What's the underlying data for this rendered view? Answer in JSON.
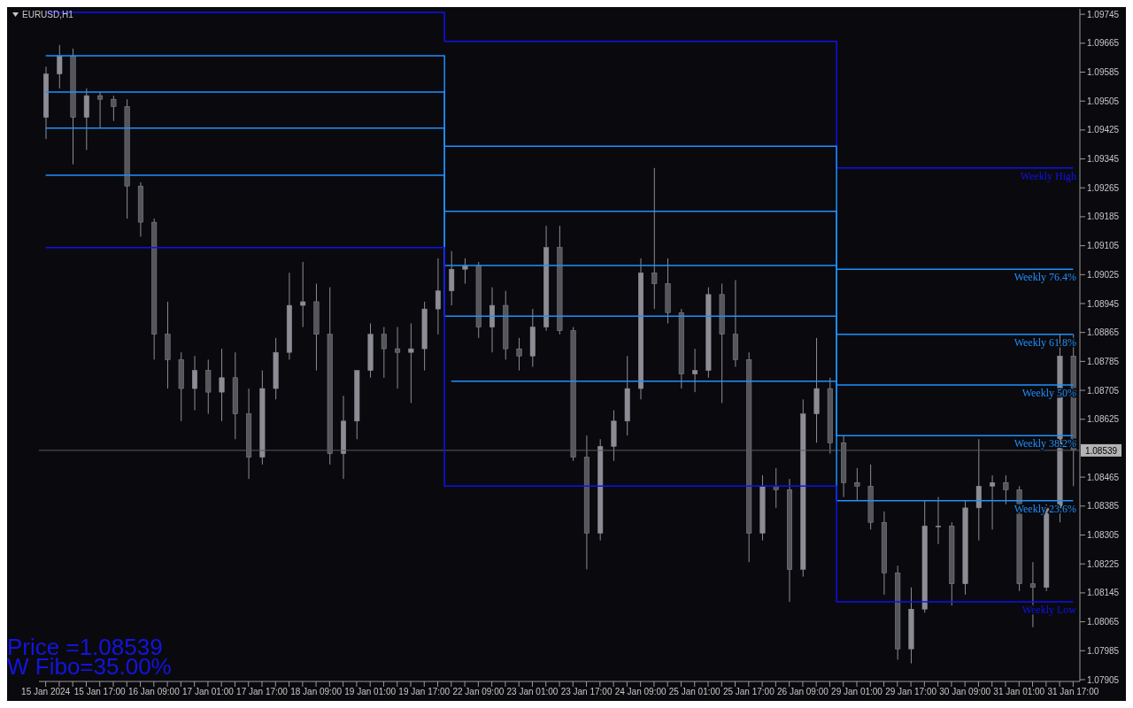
{
  "chart_data": {
    "type": "candlestick",
    "title": "EURUSD,H1",
    "color": "#8c8c94",
    "categories": [
      "15 Jan 2024",
      null,
      null,
      null,
      "15 Jan 17:00",
      null,
      null,
      null,
      "16 Jan 09:00",
      null,
      null,
      null,
      "17 Jan 01:00",
      null,
      null,
      null,
      "17 Jan 17:00",
      null,
      null,
      null,
      "18 Jan 09:00",
      null,
      null,
      null,
      "19 Jan 01:00",
      null,
      null,
      null,
      "19 Jan 17:00",
      null,
      null,
      null,
      "22 Jan 09:00",
      null,
      null,
      null,
      "23 Jan 01:00",
      null,
      null,
      null,
      "23 Jan 17:00",
      null,
      null,
      null,
      "24 Jan 09:00",
      null,
      null,
      null,
      "25 Jan 01:00",
      null,
      null,
      null,
      "25 Jan 17:00",
      null,
      null,
      null,
      "26 Jan 09:00",
      null,
      null,
      null,
      "29 Jan 01:00",
      null,
      null,
      null,
      "29 Jan 17:00",
      null,
      null,
      null,
      "30 Jan 09:00",
      null,
      null,
      null,
      "31 Jan 01:00",
      null,
      null,
      null,
      "31 Jan 17:00"
    ],
    "ohlc": [
      [
        1.0946,
        1.096,
        1.094,
        1.0958
      ],
      [
        1.0958,
        1.0966,
        1.0954,
        1.0963
      ],
      [
        1.0963,
        1.0965,
        1.0933,
        1.0946
      ],
      [
        1.0946,
        1.0954,
        1.0937,
        1.0952
      ],
      [
        1.0952,
        1.0953,
        1.0943,
        1.0951
      ],
      [
        1.0951,
        1.0952,
        1.0945,
        1.0949
      ],
      [
        1.0949,
        1.0951,
        1.0918,
        1.0927
      ],
      [
        1.0927,
        1.0928,
        1.0913,
        1.0917
      ],
      [
        1.0917,
        1.0918,
        1.0879,
        1.0886
      ],
      [
        1.0886,
        1.0895,
        1.0871,
        1.0879
      ],
      [
        1.0879,
        1.0881,
        1.0862,
        1.0871
      ],
      [
        1.0871,
        1.088,
        1.0865,
        1.0876
      ],
      [
        1.0876,
        1.0879,
        1.0864,
        1.087
      ],
      [
        1.087,
        1.0882,
        1.0862,
        1.0874
      ],
      [
        1.0874,
        1.0881,
        1.0857,
        1.0864
      ],
      [
        1.0864,
        1.0871,
        1.0846,
        1.0852
      ],
      [
        1.0852,
        1.0876,
        1.085,
        1.0871
      ],
      [
        1.0871,
        1.0885,
        1.0868,
        1.0881
      ],
      [
        1.0881,
        1.0903,
        1.0879,
        1.0894
      ],
      [
        1.0894,
        1.0906,
        1.0888,
        1.0895
      ],
      [
        1.0895,
        1.09,
        1.0876,
        1.0886
      ],
      [
        1.0886,
        1.0899,
        1.085,
        1.0853
      ],
      [
        1.0853,
        1.0869,
        1.0846,
        1.0862
      ],
      [
        1.0862,
        1.0876,
        1.0857,
        1.0876
      ],
      [
        1.0876,
        1.0889,
        1.0874,
        1.0886
      ],
      [
        1.0886,
        1.0888,
        1.0874,
        1.0882
      ],
      [
        1.0882,
        1.0888,
        1.0871,
        1.0881
      ],
      [
        1.0881,
        1.0889,
        1.0867,
        1.0882
      ],
      [
        1.0882,
        1.0895,
        1.0876,
        1.0893
      ],
      [
        1.0893,
        1.0907,
        1.0886,
        1.0898
      ],
      [
        1.0898,
        1.0909,
        1.0894,
        1.0904
      ],
      [
        1.0904,
        1.0907,
        1.09,
        1.0905
      ],
      [
        1.0905,
        1.0906,
        1.0885,
        1.0888
      ],
      [
        1.0888,
        1.0899,
        1.0881,
        1.0894
      ],
      [
        1.0894,
        1.0898,
        1.0879,
        1.0882
      ],
      [
        1.0882,
        1.0885,
        1.0876,
        1.088
      ],
      [
        1.088,
        1.0893,
        1.0877,
        1.0888
      ],
      [
        1.0888,
        1.0916,
        1.0887,
        1.091
      ],
      [
        1.091,
        1.0916,
        1.0886,
        1.0887
      ],
      [
        1.0887,
        1.0888,
        1.0851,
        1.0852
      ],
      [
        1.0852,
        1.0858,
        1.0821,
        1.0831
      ],
      [
        1.0831,
        1.0857,
        1.0829,
        1.0855
      ],
      [
        1.0855,
        1.0865,
        1.0851,
        1.0862
      ],
      [
        1.0862,
        1.088,
        1.0858,
        1.0871
      ],
      [
        1.0871,
        1.0907,
        1.0868,
        1.0903
      ],
      [
        1.0903,
        1.0932,
        1.0893,
        1.09
      ],
      [
        1.09,
        1.0907,
        1.0889,
        1.0892
      ],
      [
        1.0892,
        1.0893,
        1.0871,
        1.0875
      ],
      [
        1.0875,
        1.0882,
        1.087,
        1.0876
      ],
      [
        1.0876,
        1.0899,
        1.0874,
        1.0897
      ],
      [
        1.0897,
        1.09,
        1.0867,
        1.0886
      ],
      [
        1.0886,
        1.0901,
        1.0877,
        1.0879
      ],
      [
        1.0879,
        1.0881,
        1.0823,
        1.0831
      ],
      [
        1.0831,
        1.0847,
        1.0829,
        1.0844
      ],
      [
        1.0844,
        1.0849,
        1.0838,
        1.0843
      ],
      [
        1.0843,
        1.0846,
        1.0812,
        1.0821
      ],
      [
        1.0821,
        1.0868,
        1.0819,
        1.0864
      ],
      [
        1.0864,
        1.0885,
        1.0856,
        1.0871
      ],
      [
        1.0871,
        1.0874,
        1.0853,
        1.0856
      ],
      [
        1.0856,
        1.0858,
        1.0841,
        1.0845
      ],
      [
        1.0845,
        1.0849,
        1.084,
        1.0844
      ],
      [
        1.0844,
        1.085,
        1.0832,
        1.0834
      ],
      [
        1.0834,
        1.0837,
        1.0814,
        1.082
      ],
      [
        1.082,
        1.0822,
        1.0796,
        1.0799
      ],
      [
        1.0799,
        1.0816,
        1.0795,
        1.081
      ],
      [
        1.081,
        1.084,
        1.0809,
        1.0833
      ],
      [
        1.0833,
        1.0841,
        1.0828,
        1.0833
      ],
      [
        1.0833,
        1.0834,
        1.0811,
        1.0817
      ],
      [
        1.0817,
        1.084,
        1.0814,
        1.0838
      ],
      [
        1.0838,
        1.0857,
        1.0829,
        1.0844
      ],
      [
        1.0844,
        1.0847,
        1.0832,
        1.0845
      ],
      [
        1.0845,
        1.0847,
        1.0839,
        1.0843
      ],
      [
        1.0843,
        1.0844,
        1.0815,
        1.0817
      ],
      [
        1.0817,
        1.0823,
        1.0805,
        1.0816
      ],
      [
        1.0816,
        1.0839,
        1.0815,
        1.0838
      ],
      [
        1.0838,
        1.0886,
        1.0834,
        1.088
      ],
      [
        1.088,
        1.0886,
        1.0844,
        1.0854
      ]
    ],
    "series": [
      {
        "name": "Weekly High",
        "type": "step",
        "color": "#1010f0",
        "values": [
          1.0975,
          1.0975,
          1.0975,
          1.0975,
          1.0975,
          1.0975,
          1.0975,
          1.0975,
          1.0975,
          1.0975,
          1.0975,
          1.0975,
          1.0975,
          1.0975,
          1.0975,
          1.0975,
          1.0975,
          1.0975,
          1.0975,
          1.0975,
          1.0975,
          1.0975,
          1.0975,
          1.0975,
          1.0975,
          1.0975,
          1.0975,
          1.0975,
          1.0975,
          1.0975,
          1.0967,
          1.0967,
          1.0967,
          1.0967,
          1.0967,
          1.0967,
          1.0967,
          1.0967,
          1.0967,
          1.0967,
          1.0967,
          1.0967,
          1.0967,
          1.0967,
          1.0967,
          1.0967,
          1.0967,
          1.0967,
          1.0967,
          1.0967,
          1.0967,
          1.0967,
          1.0967,
          1.0967,
          1.0967,
          1.0967,
          1.0967,
          1.0967,
          1.0967,
          1.0932,
          1.0932,
          1.0932,
          1.0932,
          1.0932,
          1.0932,
          1.0932,
          1.0932,
          1.0932,
          1.0932,
          1.0932,
          1.0932,
          1.0932,
          1.0932,
          1.0932,
          1.0932,
          1.0932,
          1.0932
        ]
      },
      {
        "name": "Weekly 76.4%",
        "type": "step",
        "color": "#1e90ff",
        "values": [
          1.0963,
          1.0963,
          1.0963,
          1.0963,
          1.0963,
          1.0963,
          1.0963,
          1.0963,
          1.0963,
          1.0963,
          1.0963,
          1.0963,
          1.0963,
          1.0963,
          1.0963,
          1.0963,
          1.0963,
          1.0963,
          1.0963,
          1.0963,
          1.0963,
          1.0963,
          1.0963,
          1.0963,
          1.0963,
          1.0963,
          1.0963,
          1.0963,
          1.0963,
          1.0963,
          1.0938,
          1.0938,
          1.0938,
          1.0938,
          1.0938,
          1.0938,
          1.0938,
          1.0938,
          1.0938,
          1.0938,
          1.0938,
          1.0938,
          1.0938,
          1.0938,
          1.0938,
          1.0938,
          1.0938,
          1.0938,
          1.0938,
          1.0938,
          1.0938,
          1.0938,
          1.0938,
          1.0938,
          1.0938,
          1.0938,
          1.0938,
          1.0938,
          1.0938,
          1.0904,
          1.0904,
          1.0904,
          1.0904,
          1.0904,
          1.0904,
          1.0904,
          1.0904,
          1.0904,
          1.0904,
          1.0904,
          1.0904,
          1.0904,
          1.0904,
          1.0904,
          1.0904,
          1.0904,
          1.0904
        ]
      },
      {
        "name": "Weekly 61.8%",
        "type": "step",
        "color": "#1e90ff",
        "values": [
          1.0953,
          1.0953,
          1.0953,
          1.0953,
          1.0953,
          1.0953,
          1.0953,
          1.0953,
          1.0953,
          1.0953,
          1.0953,
          1.0953,
          1.0953,
          1.0953,
          1.0953,
          1.0953,
          1.0953,
          1.0953,
          1.0953,
          1.0953,
          1.0953,
          1.0953,
          1.0953,
          1.0953,
          1.0953,
          1.0953,
          1.0953,
          1.0953,
          1.0953,
          1.0953,
          1.092,
          1.092,
          1.092,
          1.092,
          1.092,
          1.092,
          1.092,
          1.092,
          1.092,
          1.092,
          1.092,
          1.092,
          1.092,
          1.092,
          1.092,
          1.092,
          1.092,
          1.092,
          1.092,
          1.092,
          1.092,
          1.092,
          1.092,
          1.092,
          1.092,
          1.092,
          1.092,
          1.092,
          1.092,
          1.0886,
          1.0886,
          1.0886,
          1.0886,
          1.0886,
          1.0886,
          1.0886,
          1.0886,
          1.0886,
          1.0886,
          1.0886,
          1.0886,
          1.0886,
          1.0886,
          1.0886,
          1.0886,
          1.0886,
          1.0886
        ]
      },
      {
        "name": "Weekly 50%",
        "type": "step",
        "color": "#1e90ff",
        "values": [
          1.0943,
          1.0943,
          1.0943,
          1.0943,
          1.0943,
          1.0943,
          1.0943,
          1.0943,
          1.0943,
          1.0943,
          1.0943,
          1.0943,
          1.0943,
          1.0943,
          1.0943,
          1.0943,
          1.0943,
          1.0943,
          1.0943,
          1.0943,
          1.0943,
          1.0943,
          1.0943,
          1.0943,
          1.0943,
          1.0943,
          1.0943,
          1.0943,
          1.0943,
          1.0943,
          1.0905,
          1.0905,
          1.0905,
          1.0905,
          1.0905,
          1.0905,
          1.0905,
          1.0905,
          1.0905,
          1.0905,
          1.0905,
          1.0905,
          1.0905,
          1.0905,
          1.0905,
          1.0905,
          1.0905,
          1.0905,
          1.0905,
          1.0905,
          1.0905,
          1.0905,
          1.0905,
          1.0905,
          1.0905,
          1.0905,
          1.0905,
          1.0905,
          1.0905,
          1.0872,
          1.0872,
          1.0872,
          1.0872,
          1.0872,
          1.0872,
          1.0872,
          1.0872,
          1.0872,
          1.0872,
          1.0872,
          1.0872,
          1.0872,
          1.0872,
          1.0872,
          1.0872,
          1.0872,
          1.0872
        ]
      },
      {
        "name": "Weekly 38.2%",
        "type": "step",
        "color": "#1e90ff",
        "values": [
          1.093,
          1.093,
          1.093,
          1.093,
          1.093,
          1.093,
          1.093,
          1.093,
          1.093,
          1.093,
          1.093,
          1.093,
          1.093,
          1.093,
          1.093,
          1.093,
          1.093,
          1.093,
          1.093,
          1.093,
          1.093,
          1.093,
          1.093,
          1.093,
          1.093,
          1.093,
          1.093,
          1.093,
          1.093,
          1.093,
          1.0891,
          1.0891,
          1.0891,
          1.0891,
          1.0891,
          1.0891,
          1.0891,
          1.0891,
          1.0891,
          1.0891,
          1.0891,
          1.0891,
          1.0891,
          1.0891,
          1.0891,
          1.0891,
          1.0891,
          1.0891,
          1.0891,
          1.0891,
          1.0891,
          1.0891,
          1.0891,
          1.0891,
          1.0891,
          1.0891,
          1.0891,
          1.0891,
          1.0891,
          1.0858,
          1.0858,
          1.0858,
          1.0858,
          1.0858,
          1.0858,
          1.0858,
          1.0858,
          1.0858,
          1.0858,
          1.0858,
          1.0858,
          1.0858,
          1.0858,
          1.0858,
          1.0858,
          1.0858,
          1.0858
        ]
      },
      {
        "name": "Weekly 23.6%",
        "type": "step",
        "color": "#1e90ff",
        "values": [
          null,
          null,
          null,
          null,
          null,
          null,
          null,
          null,
          null,
          null,
          null,
          null,
          null,
          null,
          null,
          null,
          null,
          null,
          null,
          null,
          null,
          null,
          null,
          null,
          null,
          null,
          null,
          null,
          null,
          null,
          1.0873,
          1.0873,
          1.0873,
          1.0873,
          1.0873,
          1.0873,
          1.0873,
          1.0873,
          1.0873,
          1.0873,
          1.0873,
          1.0873,
          1.0873,
          1.0873,
          1.0873,
          1.0873,
          1.0873,
          1.0873,
          1.0873,
          1.0873,
          1.0873,
          1.0873,
          1.0873,
          1.0873,
          1.0873,
          1.0873,
          1.0873,
          1.0873,
          1.0873,
          1.084,
          1.084,
          1.084,
          1.084,
          1.084,
          1.084,
          1.084,
          1.084,
          1.084,
          1.084,
          1.084,
          1.084,
          1.084,
          1.084,
          1.084,
          1.084,
          1.084,
          1.084
        ]
      },
      {
        "name": "Weekly Low",
        "type": "step",
        "color": "#1010f0",
        "values": [
          1.091,
          1.091,
          1.091,
          1.091,
          1.091,
          1.091,
          1.091,
          1.091,
          1.091,
          1.091,
          1.091,
          1.091,
          1.091,
          1.091,
          1.091,
          1.091,
          1.091,
          1.091,
          1.091,
          1.091,
          1.091,
          1.091,
          1.091,
          1.091,
          1.091,
          1.091,
          1.091,
          1.091,
          1.091,
          1.091,
          1.0844,
          1.0844,
          1.0844,
          1.0844,
          1.0844,
          1.0844,
          1.0844,
          1.0844,
          1.0844,
          1.0844,
          1.0844,
          1.0844,
          1.0844,
          1.0844,
          1.0844,
          1.0844,
          1.0844,
          1.0844,
          1.0844,
          1.0844,
          1.0844,
          1.0844,
          1.0844,
          1.0844,
          1.0844,
          1.0844,
          1.0844,
          1.0844,
          1.0844,
          1.0812,
          1.0812,
          1.0812,
          1.0812,
          1.0812,
          1.0812,
          1.0812,
          1.0812,
          1.0812,
          1.0812,
          1.0812,
          1.0812,
          1.0812,
          1.0812,
          1.0812,
          1.0812,
          1.0812,
          1.0812
        ]
      }
    ],
    "ylim": [
      1.079,
      1.0976
    ],
    "yticks": [
      1.09745,
      1.09665,
      1.09585,
      1.09505,
      1.09425,
      1.09345,
      1.09265,
      1.09185,
      1.09105,
      1.09025,
      1.08945,
      1.08865,
      1.08785,
      1.08705,
      1.08625,
      1.08465,
      1.08385,
      1.08305,
      1.08225,
      1.08145,
      1.08065,
      1.07985,
      1.07905
    ],
    "ref_lines": [
      {
        "axis": "y",
        "value": 1.08539,
        "label": "1.08539",
        "color": "#5a5a62"
      }
    ],
    "annotations": [
      "Price =1.08539",
      "W Fibo=35.00%"
    ]
  }
}
